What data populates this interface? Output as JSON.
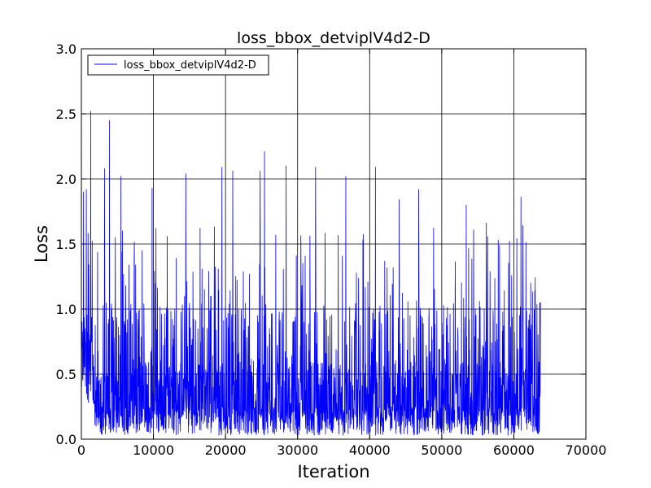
{
  "chart_data": {
    "type": "line",
    "title": "loss_bbox_detviplV4d2-D",
    "xlabel": "Iteration",
    "ylabel": "Loss",
    "xlim": [
      0,
      70000
    ],
    "ylim": [
      0.0,
      3.0
    ],
    "xticks": [
      "0",
      "10000",
      "20000",
      "30000",
      "40000",
      "50000",
      "60000",
      "70000"
    ],
    "yticks": [
      "0.0",
      "0.5",
      "1.0",
      "1.5",
      "2.0",
      "2.5",
      "3.0"
    ],
    "grid": true,
    "legend_placement": "top-left",
    "series": [
      {
        "name": "loss_bbox_detviplV4d2-D",
        "color": "#0000ff",
        "x_end": 63700,
        "peaks": [
          {
            "x": 300,
            "y": 1.9
          },
          {
            "x": 700,
            "y": 1.92
          },
          {
            "x": 1300,
            "y": 2.52
          },
          {
            "x": 3200,
            "y": 2.08
          },
          {
            "x": 3900,
            "y": 2.45
          },
          {
            "x": 5500,
            "y": 2.02
          },
          {
            "x": 9800,
            "y": 1.93
          },
          {
            "x": 14500,
            "y": 2.04
          },
          {
            "x": 19500,
            "y": 2.09
          },
          {
            "x": 21000,
            "y": 2.06
          },
          {
            "x": 24800,
            "y": 2.06
          },
          {
            "x": 25400,
            "y": 2.21
          },
          {
            "x": 28400,
            "y": 2.1
          },
          {
            "x": 32500,
            "y": 2.09
          },
          {
            "x": 36700,
            "y": 2.02
          },
          {
            "x": 40800,
            "y": 2.09
          },
          {
            "x": 44100,
            "y": 1.84
          },
          {
            "x": 46800,
            "y": 1.92
          },
          {
            "x": 53400,
            "y": 1.8
          },
          {
            "x": 56200,
            "y": 1.66
          },
          {
            "x": 61000,
            "y": 1.86
          },
          {
            "x": 63600,
            "y": 1.05
          }
        ]
      }
    ]
  }
}
